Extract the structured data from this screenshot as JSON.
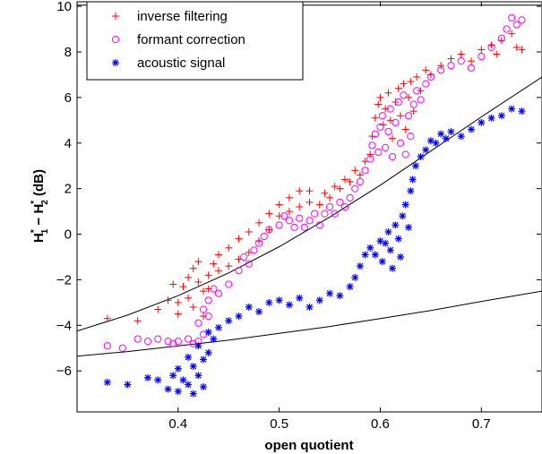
{
  "chart_data": {
    "type": "scatter",
    "title": "",
    "xlabel": "open quotient",
    "ylabel": "H1* − H2* (dB)",
    "xlim": [
      0.3,
      0.76
    ],
    "ylim": [
      -7.8,
      10.2
    ],
    "xticks": [
      0.4,
      0.5,
      0.6,
      0.7
    ],
    "xtick_labels": [
      "0.4",
      "0.5",
      "0.6",
      "0.7"
    ],
    "yticks": [
      -6,
      -4,
      -2,
      0,
      2,
      4,
      6,
      8,
      10
    ],
    "ytick_labels": [
      "−6",
      "−4",
      "−2",
      "0",
      "2",
      "4",
      "6",
      "8",
      "10"
    ],
    "grid": false,
    "legend_position": "top-left",
    "series": [
      {
        "name": "inverse filtering",
        "marker": "plus",
        "color": "#ff0000",
        "points": [
          [
            0.33,
            -3.7
          ],
          [
            0.36,
            -3.8
          ],
          [
            0.38,
            -3.3
          ],
          [
            0.39,
            -2.9
          ],
          [
            0.395,
            -2.2
          ],
          [
            0.4,
            -3.0
          ],
          [
            0.4,
            -3.5
          ],
          [
            0.405,
            -2.3
          ],
          [
            0.41,
            -1.9
          ],
          [
            0.41,
            -2.8
          ],
          [
            0.415,
            -1.5
          ],
          [
            0.415,
            -3.2
          ],
          [
            0.42,
            -2.1
          ],
          [
            0.42,
            -1.2
          ],
          [
            0.425,
            -2.5
          ],
          [
            0.425,
            -3.6
          ],
          [
            0.43,
            -1.8
          ],
          [
            0.43,
            -2.4
          ],
          [
            0.435,
            -1.3
          ],
          [
            0.44,
            -1.6
          ],
          [
            0.44,
            -0.9
          ],
          [
            0.45,
            -1.4
          ],
          [
            0.45,
            -0.6
          ],
          [
            0.46,
            -1.1
          ],
          [
            0.46,
            -0.2
          ],
          [
            0.47,
            -0.8
          ],
          [
            0.47,
            0.1
          ],
          [
            0.48,
            -0.3
          ],
          [
            0.48,
            0.5
          ],
          [
            0.49,
            0.2
          ],
          [
            0.49,
            0.9
          ],
          [
            0.5,
            0.8
          ],
          [
            0.5,
            1.3
          ],
          [
            0.51,
            1.0
          ],
          [
            0.51,
            1.6
          ],
          [
            0.52,
            1.2
          ],
          [
            0.52,
            1.9
          ],
          [
            0.53,
            1.4
          ],
          [
            0.53,
            1.9
          ],
          [
            0.54,
            1.3
          ],
          [
            0.545,
            1.8
          ],
          [
            0.55,
            1.6
          ],
          [
            0.555,
            2.1
          ],
          [
            0.56,
            2.0
          ],
          [
            0.565,
            2.4
          ],
          [
            0.57,
            2.3
          ],
          [
            0.575,
            2.8
          ],
          [
            0.58,
            2.6
          ],
          [
            0.585,
            3.2
          ],
          [
            0.59,
            3.5
          ],
          [
            0.592,
            4.3
          ],
          [
            0.595,
            5.1
          ],
          [
            0.598,
            5.7
          ],
          [
            0.6,
            6.0
          ],
          [
            0.603,
            4.8
          ],
          [
            0.605,
            5.5
          ],
          [
            0.608,
            6.2
          ],
          [
            0.61,
            5.0
          ],
          [
            0.612,
            4.2
          ],
          [
            0.615,
            5.8
          ],
          [
            0.618,
            6.4
          ],
          [
            0.62,
            5.2
          ],
          [
            0.623,
            6.6
          ],
          [
            0.625,
            4.6
          ],
          [
            0.628,
            6.0
          ],
          [
            0.63,
            6.7
          ],
          [
            0.633,
            5.4
          ],
          [
            0.636,
            6.9
          ],
          [
            0.64,
            6.3
          ],
          [
            0.645,
            7.2
          ],
          [
            0.65,
            7.0
          ],
          [
            0.66,
            7.4
          ],
          [
            0.67,
            7.7
          ],
          [
            0.68,
            7.9
          ],
          [
            0.69,
            7.6
          ],
          [
            0.7,
            8.1
          ],
          [
            0.71,
            8.3
          ],
          [
            0.715,
            7.9
          ],
          [
            0.72,
            8.5
          ],
          [
            0.73,
            8.8
          ],
          [
            0.735,
            8.2
          ],
          [
            0.74,
            8.1
          ]
        ]
      },
      {
        "name": "formant correction",
        "marker": "circle",
        "color": "#ff00ff",
        "points": [
          [
            0.33,
            -4.9
          ],
          [
            0.345,
            -5.0
          ],
          [
            0.36,
            -4.6
          ],
          [
            0.37,
            -4.7
          ],
          [
            0.38,
            -4.6
          ],
          [
            0.39,
            -4.7
          ],
          [
            0.395,
            -4.8
          ],
          [
            0.4,
            -4.7
          ],
          [
            0.41,
            -4.6
          ],
          [
            0.415,
            -4.8
          ],
          [
            0.42,
            -4.7
          ],
          [
            0.42,
            -3.9
          ],
          [
            0.425,
            -3.3
          ],
          [
            0.425,
            -4.4
          ],
          [
            0.43,
            -2.9
          ],
          [
            0.43,
            -3.6
          ],
          [
            0.435,
            -2.4
          ],
          [
            0.44,
            -2.6
          ],
          [
            0.45,
            -2.2
          ],
          [
            0.46,
            -1.6
          ],
          [
            0.465,
            -1.0
          ],
          [
            0.47,
            -1.3
          ],
          [
            0.475,
            -0.7
          ],
          [
            0.48,
            -0.4
          ],
          [
            0.485,
            -0.1
          ],
          [
            0.49,
            0.2
          ],
          [
            0.5,
            0.4
          ],
          [
            0.505,
            0.8
          ],
          [
            0.51,
            0.6
          ],
          [
            0.515,
            0.3
          ],
          [
            0.52,
            0.7
          ],
          [
            0.525,
            0.3
          ],
          [
            0.53,
            0.6
          ],
          [
            0.535,
            0.9
          ],
          [
            0.54,
            0.4
          ],
          [
            0.545,
            0.9
          ],
          [
            0.55,
            1.2
          ],
          [
            0.555,
            0.9
          ],
          [
            0.56,
            1.4
          ],
          [
            0.565,
            1.2
          ],
          [
            0.57,
            1.6
          ],
          [
            0.575,
            2.0
          ],
          [
            0.58,
            2.3
          ],
          [
            0.585,
            2.8
          ],
          [
            0.59,
            3.3
          ],
          [
            0.592,
            3.9
          ],
          [
            0.595,
            4.4
          ],
          [
            0.598,
            3.6
          ],
          [
            0.6,
            4.7
          ],
          [
            0.602,
            5.2
          ],
          [
            0.605,
            3.8
          ],
          [
            0.608,
            4.5
          ],
          [
            0.61,
            5.5
          ],
          [
            0.612,
            3.4
          ],
          [
            0.615,
            4.9
          ],
          [
            0.618,
            5.8
          ],
          [
            0.62,
            4.0
          ],
          [
            0.623,
            6.1
          ],
          [
            0.625,
            3.5
          ],
          [
            0.628,
            5.2
          ],
          [
            0.63,
            4.3
          ],
          [
            0.633,
            5.7
          ],
          [
            0.636,
            6.3
          ],
          [
            0.64,
            5.9
          ],
          [
            0.645,
            6.6
          ],
          [
            0.65,
            6.9
          ],
          [
            0.66,
            7.2
          ],
          [
            0.67,
            7.4
          ],
          [
            0.68,
            7.6
          ],
          [
            0.69,
            7.3
          ],
          [
            0.7,
            7.8
          ],
          [
            0.71,
            8.2
          ],
          [
            0.72,
            8.6
          ],
          [
            0.725,
            9.0
          ],
          [
            0.73,
            9.5
          ],
          [
            0.735,
            9.2
          ],
          [
            0.74,
            9.4
          ]
        ]
      },
      {
        "name": "acoustic signal",
        "marker": "star",
        "color": "#0000ff",
        "points": [
          [
            0.33,
            -6.5
          ],
          [
            0.35,
            -6.6
          ],
          [
            0.37,
            -6.3
          ],
          [
            0.38,
            -6.4
          ],
          [
            0.39,
            -6.8
          ],
          [
            0.395,
            -6.2
          ],
          [
            0.4,
            -6.9
          ],
          [
            0.4,
            -5.9
          ],
          [
            0.405,
            -6.4
          ],
          [
            0.41,
            -5.4
          ],
          [
            0.41,
            -6.6
          ],
          [
            0.415,
            -5.8
          ],
          [
            0.415,
            -7.0
          ],
          [
            0.42,
            -4.9
          ],
          [
            0.42,
            -6.2
          ],
          [
            0.425,
            -5.5
          ],
          [
            0.425,
            -6.7
          ],
          [
            0.43,
            -4.3
          ],
          [
            0.43,
            -5.2
          ],
          [
            0.435,
            -4.6
          ],
          [
            0.44,
            -4.1
          ],
          [
            0.45,
            -3.8
          ],
          [
            0.46,
            -3.6
          ],
          [
            0.47,
            -3.2
          ],
          [
            0.48,
            -3.4
          ],
          [
            0.49,
            -3.0
          ],
          [
            0.5,
            -2.9
          ],
          [
            0.51,
            -3.1
          ],
          [
            0.52,
            -2.8
          ],
          [
            0.53,
            -3.2
          ],
          [
            0.54,
            -2.9
          ],
          [
            0.55,
            -2.6
          ],
          [
            0.56,
            -2.7
          ],
          [
            0.57,
            -2.3
          ],
          [
            0.575,
            -1.9
          ],
          [
            0.58,
            -1.4
          ],
          [
            0.585,
            -0.9
          ],
          [
            0.59,
            -0.6
          ],
          [
            0.595,
            -0.9
          ],
          [
            0.6,
            -0.3
          ],
          [
            0.602,
            -1.2
          ],
          [
            0.605,
            -0.4
          ],
          [
            0.608,
            0.1
          ],
          [
            0.61,
            -0.7
          ],
          [
            0.612,
            -1.5
          ],
          [
            0.615,
            0.4
          ],
          [
            0.618,
            -0.2
          ],
          [
            0.62,
            -1.0
          ],
          [
            0.622,
            0.8
          ],
          [
            0.625,
            1.3
          ],
          [
            0.628,
            0.3
          ],
          [
            0.63,
            1.9
          ],
          [
            0.632,
            2.4
          ],
          [
            0.635,
            3.0
          ],
          [
            0.64,
            3.4
          ],
          [
            0.645,
            3.7
          ],
          [
            0.65,
            4.1
          ],
          [
            0.655,
            4.0
          ],
          [
            0.66,
            4.4
          ],
          [
            0.665,
            4.2
          ],
          [
            0.67,
            4.5
          ],
          [
            0.68,
            4.3
          ],
          [
            0.69,
            4.6
          ],
          [
            0.7,
            4.9
          ],
          [
            0.71,
            5.1
          ],
          [
            0.72,
            5.2
          ],
          [
            0.73,
            5.5
          ],
          [
            0.74,
            5.4
          ]
        ]
      }
    ],
    "fit_lines": [
      {
        "color": "#000000",
        "x": [
          0.3,
          0.35,
          0.4,
          0.45,
          0.5,
          0.55,
          0.6,
          0.65,
          0.7,
          0.76
        ],
        "y": [
          -4.25,
          -3.55,
          -2.7,
          -1.7,
          -0.55,
          0.75,
          2.15,
          3.65,
          5.15,
          6.9
        ]
      },
      {
        "color": "#000000",
        "x": [
          0.3,
          0.35,
          0.4,
          0.45,
          0.5,
          0.55,
          0.6,
          0.65,
          0.7,
          0.76
        ],
        "y": [
          -5.35,
          -5.15,
          -4.9,
          -4.65,
          -4.35,
          -4.05,
          -3.7,
          -3.35,
          -2.95,
          -2.5
        ]
      },
      {
        "color": "#000000",
        "x": [
          0.3,
          0.76
        ],
        "y": [
          10.05,
          10.05
        ]
      }
    ]
  }
}
